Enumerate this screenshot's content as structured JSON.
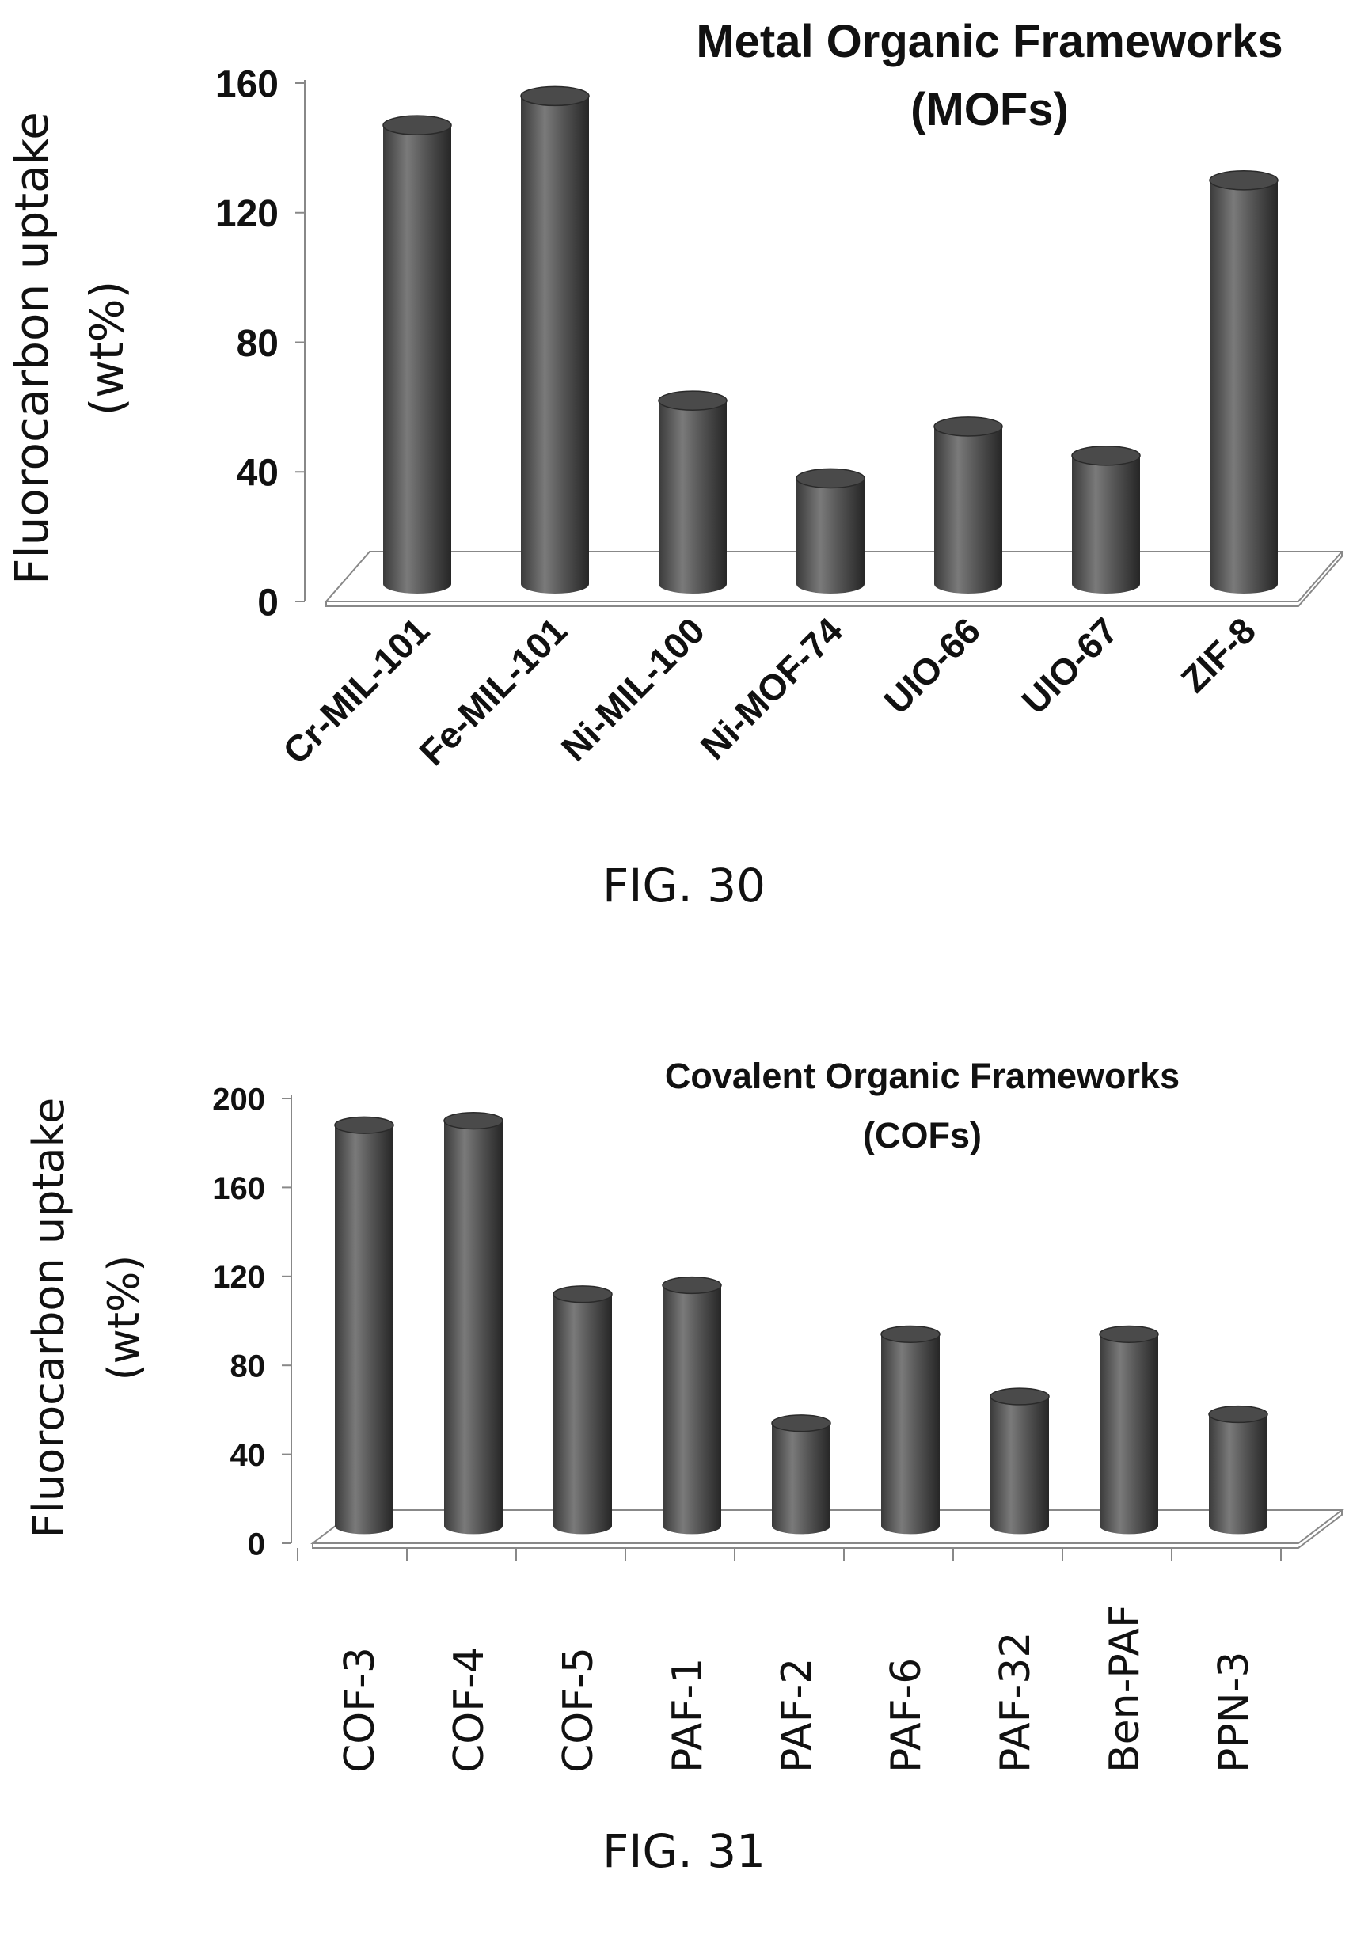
{
  "chart_data": [
    {
      "type": "bar",
      "title": "Metal Organic Frameworks",
      "subtitle": "(MOFs)",
      "ylabel_line1": "Fluorocarbon uptake",
      "ylabel_line2": "(wt%)",
      "categories": [
        "Cr-MIL-101",
        "Fe-MIL-101",
        "Ni-MIL-100",
        "Ni-MOF-74",
        "UIO-66",
        "UIO-67",
        "ZIF-8"
      ],
      "values": [
        147,
        156,
        62,
        38,
        54,
        45,
        130
      ],
      "ylim": [
        0,
        160
      ],
      "yticks": [
        "0",
        "40",
        "80",
        "120",
        "160"
      ],
      "caption": "FIG. 30"
    },
    {
      "type": "bar",
      "title": "Covalent Organic Frameworks",
      "subtitle": "(COFs)",
      "ylabel_line1": "Fluorocarbon uptake",
      "ylabel_line2": "(wt%)",
      "categories": [
        "COF-3",
        "COF-4",
        "COF-5",
        "PAF-1",
        "PAF-2",
        "PAF-6",
        "PAF-32",
        "Ben-PAF",
        "PPN-3"
      ],
      "values": [
        188,
        190,
        112,
        116,
        54,
        94,
        66,
        94,
        58
      ],
      "ylim": [
        0,
        200
      ],
      "yticks": [
        "0",
        "40",
        "80",
        "120",
        "160",
        "200"
      ],
      "caption": "FIG. 31"
    }
  ]
}
